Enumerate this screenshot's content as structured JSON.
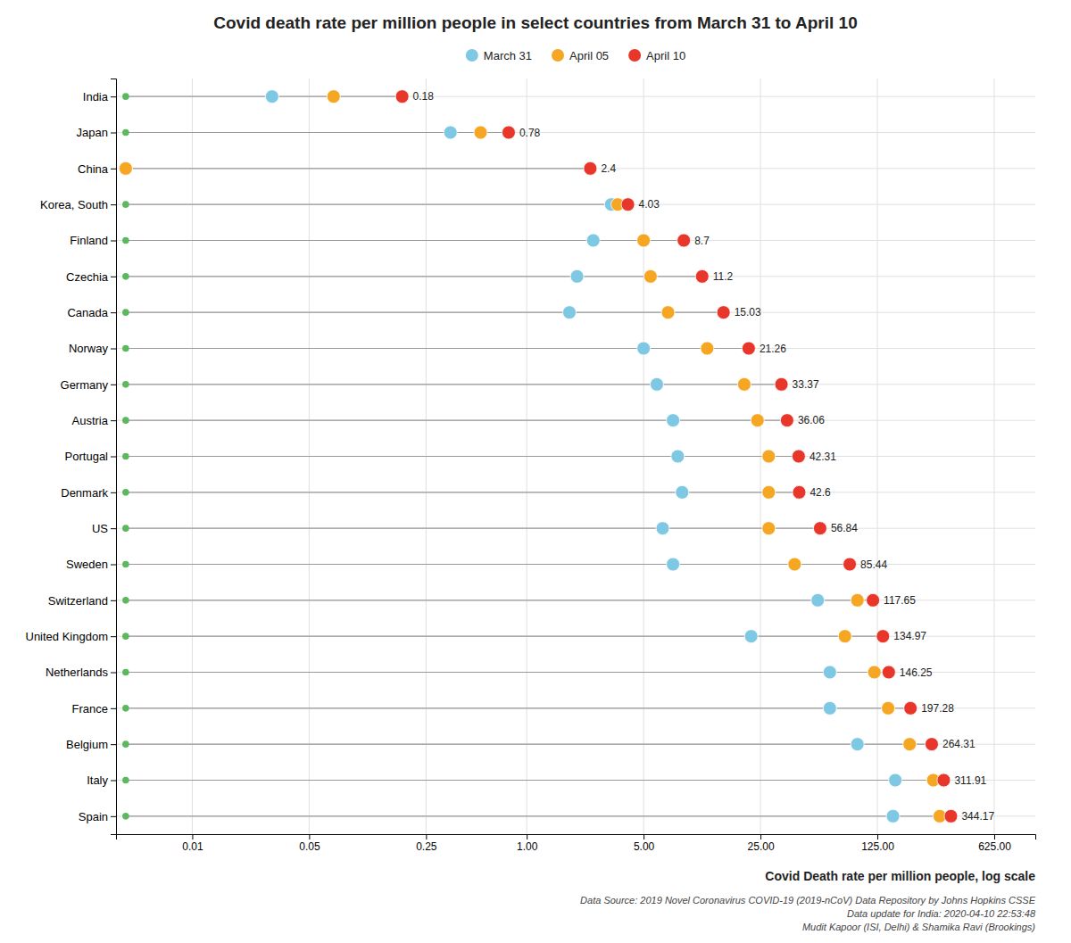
{
  "chart_data": {
    "type": "dot",
    "title": "Covid death rate per million people in select countries from March 31 to April 10",
    "x_label": "Covid Death rate per million people, log scale",
    "annotations": [
      "Data Source: 2019 Novel Coronavirus COVID-19 (2019-nCoV) Data Repository by Johns Hopkins CSSE",
      "Data update for India: 2020-04-10 22:53:48",
      "Mudit Kapoor (ISI, Delhi) & Shamika Ravi (Brookings)"
    ],
    "categories": [
      "India",
      "Japan",
      "China",
      "Korea, South",
      "Finland",
      "Czechia",
      "Canada",
      "Norway",
      "Germany",
      "Austria",
      "Portugal",
      "Denmark",
      "US",
      "Sweden",
      "Switzerland",
      "United Kingdom",
      "Netherlands",
      "France",
      "Belgium",
      "Italy",
      "Spain"
    ],
    "series": [
      {
        "name": "March 31",
        "color": "#7EC8E3",
        "marker": "circle",
        "values": [
          0.03,
          0.35,
          0.004,
          3.2,
          2.5,
          2.0,
          1.8,
          5.0,
          6.0,
          7.5,
          8.0,
          8.5,
          6.5,
          7.5,
          55.0,
          22.0,
          65.0,
          65.0,
          95.0,
          160.0,
          155.0
        ]
      },
      {
        "name": "April 05",
        "color": "#F5A623",
        "marker": "circle",
        "values": [
          0.07,
          0.53,
          0.004,
          3.5,
          5.0,
          5.5,
          7.0,
          12.0,
          20.0,
          24.0,
          28.0,
          28.0,
          28.0,
          40.0,
          95.0,
          80.0,
          120.0,
          145.0,
          195.0,
          270.0,
          295.0
        ]
      },
      {
        "name": "April 10",
        "color": "#E8372A",
        "marker": "circle",
        "data_labels": true,
        "values": [
          0.18,
          0.78,
          2.4,
          4.03,
          8.7,
          11.2,
          15.03,
          21.26,
          33.37,
          36.06,
          42.31,
          42.6,
          56.84,
          85.44,
          117.65,
          134.97,
          146.25,
          197.28,
          264.31,
          311.91,
          344.17
        ]
      }
    ],
    "baseline": {
      "value": 0.004,
      "color": "#5CB85C"
    },
    "log": "x",
    "xlim": [
      0.0035,
      1100.0
    ],
    "xticks": [
      0.01,
      0.05,
      0.25,
      {
        "value": 1.0,
        "label": "1.00"
      },
      {
        "value": 5.0,
        "label": "5.00"
      },
      {
        "value": 25.0,
        "label": "25.00"
      },
      {
        "value": 125.0,
        "label": "125.00"
      },
      {
        "value": 625.0,
        "label": "625.00"
      }
    ],
    "grid": true,
    "legend": "top"
  }
}
